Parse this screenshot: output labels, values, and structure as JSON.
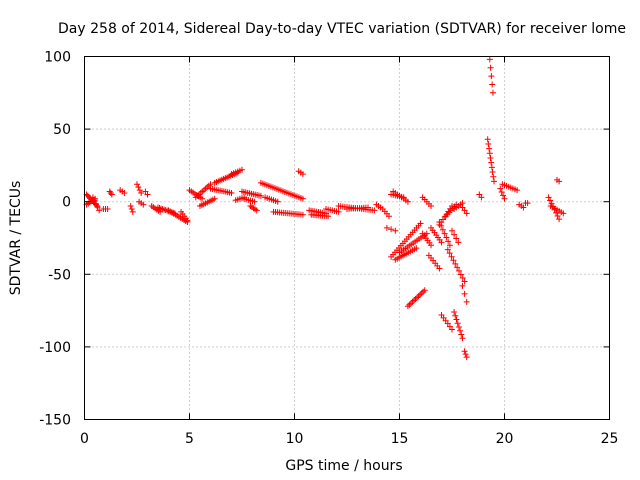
{
  "chart_data": {
    "type": "scatter",
    "title": "Day 258 of 2014, Sidereal Day-to-day VTEC variation (SDTVAR) for receiver lome",
    "xlabel": "GPS time / hours",
    "ylabel": "SDTVAR / TECUs",
    "xlim": [
      0,
      25
    ],
    "ylim": [
      -150,
      100
    ],
    "x_ticks": [
      0,
      5,
      10,
      15,
      20,
      25
    ],
    "x_tick_labels": [
      "0",
      "5",
      "10",
      "15",
      "20",
      "25"
    ],
    "y_ticks": [
      -150,
      -100,
      -50,
      0,
      50,
      100
    ],
    "y_tick_labels": [
      "-150",
      "-100",
      "-50",
      "0",
      "50",
      "100"
    ],
    "grid": true,
    "marker": "plus",
    "series_color": "#ff0000",
    "segments": [
      {
        "x0": 0.1,
        "x1": 0.6,
        "y0": 5,
        "y1": -3,
        "n": 10
      },
      {
        "x0": 0.1,
        "x1": 0.5,
        "y0": -2,
        "y1": 2,
        "n": 6
      },
      {
        "x0": 0.4,
        "x1": 0.7,
        "y0": 3,
        "y1": -6,
        "n": 5
      },
      {
        "x0": 0.9,
        "x1": 1.1,
        "y0": -5,
        "y1": -5,
        "n": 3
      },
      {
        "x0": 1.2,
        "x1": 1.3,
        "y0": 7,
        "y1": 5,
        "n": 3
      },
      {
        "x0": 1.7,
        "x1": 1.9,
        "y0": 8,
        "y1": 6,
        "n": 3
      },
      {
        "x0": 2.2,
        "x1": 2.3,
        "y0": -3,
        "y1": -7,
        "n": 3
      },
      {
        "x0": 2.5,
        "x1": 2.7,
        "y0": 12,
        "y1": 6,
        "n": 4
      },
      {
        "x0": 2.6,
        "x1": 2.8,
        "y0": 0,
        "y1": -2,
        "n": 3
      },
      {
        "x0": 2.9,
        "x1": 3.0,
        "y0": 7,
        "y1": 5,
        "n": 2
      },
      {
        "x0": 3.2,
        "x1": 3.6,
        "y0": -3,
        "y1": -7,
        "n": 6
      },
      {
        "x0": 3.5,
        "x1": 4.3,
        "y0": -4,
        "y1": -8,
        "n": 12
      },
      {
        "x0": 4.0,
        "x1": 4.9,
        "y0": -6,
        "y1": -14,
        "n": 12
      },
      {
        "x0": 4.6,
        "x1": 4.9,
        "y0": -7,
        "y1": -13,
        "n": 5
      },
      {
        "x0": 5.0,
        "x1": 5.6,
        "y0": 8,
        "y1": 2,
        "n": 8
      },
      {
        "x0": 5.3,
        "x1": 6.0,
        "y0": 3,
        "y1": 12,
        "n": 10
      },
      {
        "x0": 5.5,
        "x1": 6.2,
        "y0": -3,
        "y1": 2,
        "n": 9
      },
      {
        "x0": 6.0,
        "x1": 7.0,
        "y0": 9,
        "y1": 6,
        "n": 12
      },
      {
        "x0": 6.2,
        "x1": 7.3,
        "y0": 13,
        "y1": 20,
        "n": 14
      },
      {
        "x0": 7.0,
        "x1": 7.5,
        "y0": 19,
        "y1": 22,
        "n": 6
      },
      {
        "x0": 7.2,
        "x1": 7.6,
        "y0": 1,
        "y1": 3,
        "n": 5
      },
      {
        "x0": 7.5,
        "x1": 8.4,
        "y0": 7,
        "y1": 4,
        "n": 11
      },
      {
        "x0": 7.6,
        "x1": 8.1,
        "y0": 2,
        "y1": 0,
        "n": 6
      },
      {
        "x0": 7.9,
        "x1": 8.2,
        "y0": -3,
        "y1": -6,
        "n": 5
      },
      {
        "x0": 8.4,
        "x1": 10.4,
        "y0": 13,
        "y1": 2,
        "n": 22
      },
      {
        "x0": 8.6,
        "x1": 9.2,
        "y0": 3,
        "y1": 0,
        "n": 7
      },
      {
        "x0": 9.0,
        "x1": 10.4,
        "y0": -7,
        "y1": -9,
        "n": 16
      },
      {
        "x0": 10.2,
        "x1": 10.4,
        "y0": 21,
        "y1": 19,
        "n": 3
      },
      {
        "x0": 10.7,
        "x1": 11.5,
        "y0": -6,
        "y1": -8,
        "n": 10
      },
      {
        "x0": 10.8,
        "x1": 11.6,
        "y0": -9,
        "y1": -10,
        "n": 10
      },
      {
        "x0": 11.5,
        "x1": 12.1,
        "y0": -5,
        "y1": -7,
        "n": 7
      },
      {
        "x0": 12.1,
        "x1": 13.8,
        "y0": -3,
        "y1": -6,
        "n": 18
      },
      {
        "x0": 12.5,
        "x1": 13.5,
        "y0": -5,
        "y1": -4,
        "n": 11
      },
      {
        "x0": 13.9,
        "x1": 14.1,
        "y0": -2,
        "y1": -4,
        "n": 3
      },
      {
        "x0": 14.2,
        "x1": 14.5,
        "y0": -5,
        "y1": -10,
        "n": 4
      },
      {
        "x0": 14.6,
        "x1": 15.2,
        "y0": 5,
        "y1": 3,
        "n": 7
      },
      {
        "x0": 14.7,
        "x1": 15.4,
        "y0": 7,
        "y1": 0,
        "n": 8
      },
      {
        "x0": 14.4,
        "x1": 14.8,
        "y0": -18,
        "y1": -20,
        "n": 3
      },
      {
        "x0": 14.6,
        "x1": 16.0,
        "y0": -38,
        "y1": -15,
        "n": 16
      },
      {
        "x0": 15.0,
        "x1": 16.3,
        "y0": -35,
        "y1": -22,
        "n": 15
      },
      {
        "x0": 14.8,
        "x1": 15.8,
        "y0": -40,
        "y1": -32,
        "n": 12
      },
      {
        "x0": 15.4,
        "x1": 16.2,
        "y0": -72,
        "y1": -61,
        "n": 12
      },
      {
        "x0": 16.1,
        "x1": 16.5,
        "y0": -22,
        "y1": -30,
        "n": 6
      },
      {
        "x0": 16.4,
        "x1": 16.9,
        "y0": -37,
        "y1": -46,
        "n": 6
      },
      {
        "x0": 16.1,
        "x1": 16.5,
        "y0": 3,
        "y1": -3,
        "n": 5
      },
      {
        "x0": 16.5,
        "x1": 17.0,
        "y0": -18,
        "y1": -28,
        "n": 7
      },
      {
        "x0": 16.9,
        "x1": 17.4,
        "y0": -14,
        "y1": -30,
        "n": 7
      },
      {
        "x0": 16.9,
        "x1": 17.5,
        "y0": -16,
        "y1": -3,
        "n": 8
      },
      {
        "x0": 17.2,
        "x1": 17.7,
        "y0": -10,
        "y1": -2,
        "n": 7
      },
      {
        "x0": 17.5,
        "x1": 17.8,
        "y0": -20,
        "y1": -28,
        "n": 4
      },
      {
        "x0": 17.0,
        "x1": 17.5,
        "y0": -78,
        "y1": -88,
        "n": 6
      },
      {
        "x0": 17.3,
        "x1": 18.1,
        "y0": -33,
        "y1": -55,
        "n": 10
      },
      {
        "x0": 17.6,
        "x1": 18.0,
        "y0": -5,
        "y1": -1,
        "n": 5
      },
      {
        "x0": 17.9,
        "x1": 18.2,
        "y0": -2,
        "y1": -8,
        "n": 4
      },
      {
        "x0": 17.6,
        "x1": 18.0,
        "y0": -76,
        "y1": -94,
        "n": 8
      },
      {
        "x0": 18.0,
        "x1": 18.2,
        "y0": -58,
        "y1": -69,
        "n": 3
      },
      {
        "x0": 18.1,
        "x1": 18.2,
        "y0": -103,
        "y1": -107,
        "n": 3
      },
      {
        "x0": 18.8,
        "x1": 18.9,
        "y0": 5,
        "y1": 3,
        "n": 2
      },
      {
        "x0": 19.2,
        "x1": 19.5,
        "y0": 43,
        "y1": 14,
        "n": 10
      },
      {
        "x0": 19.3,
        "x1": 19.45,
        "y0": 98,
        "y1": 75,
        "n": 5
      },
      {
        "x0": 19.8,
        "x1": 20.0,
        "y0": 9,
        "y1": 2,
        "n": 4
      },
      {
        "x0": 19.9,
        "x1": 20.6,
        "y0": 12,
        "y1": 8,
        "n": 8
      },
      {
        "x0": 20.7,
        "x1": 20.9,
        "y0": -2,
        "y1": -4,
        "n": 3
      },
      {
        "x0": 21.0,
        "x1": 21.1,
        "y0": -1,
        "y1": -1,
        "n": 2
      },
      {
        "x0": 22.1,
        "x1": 22.6,
        "y0": 3,
        "y1": -12,
        "n": 8
      },
      {
        "x0": 22.2,
        "x1": 22.8,
        "y0": -3,
        "y1": -8,
        "n": 7
      },
      {
        "x0": 22.5,
        "x1": 22.6,
        "y0": 15,
        "y1": 14,
        "n": 2
      }
    ]
  }
}
